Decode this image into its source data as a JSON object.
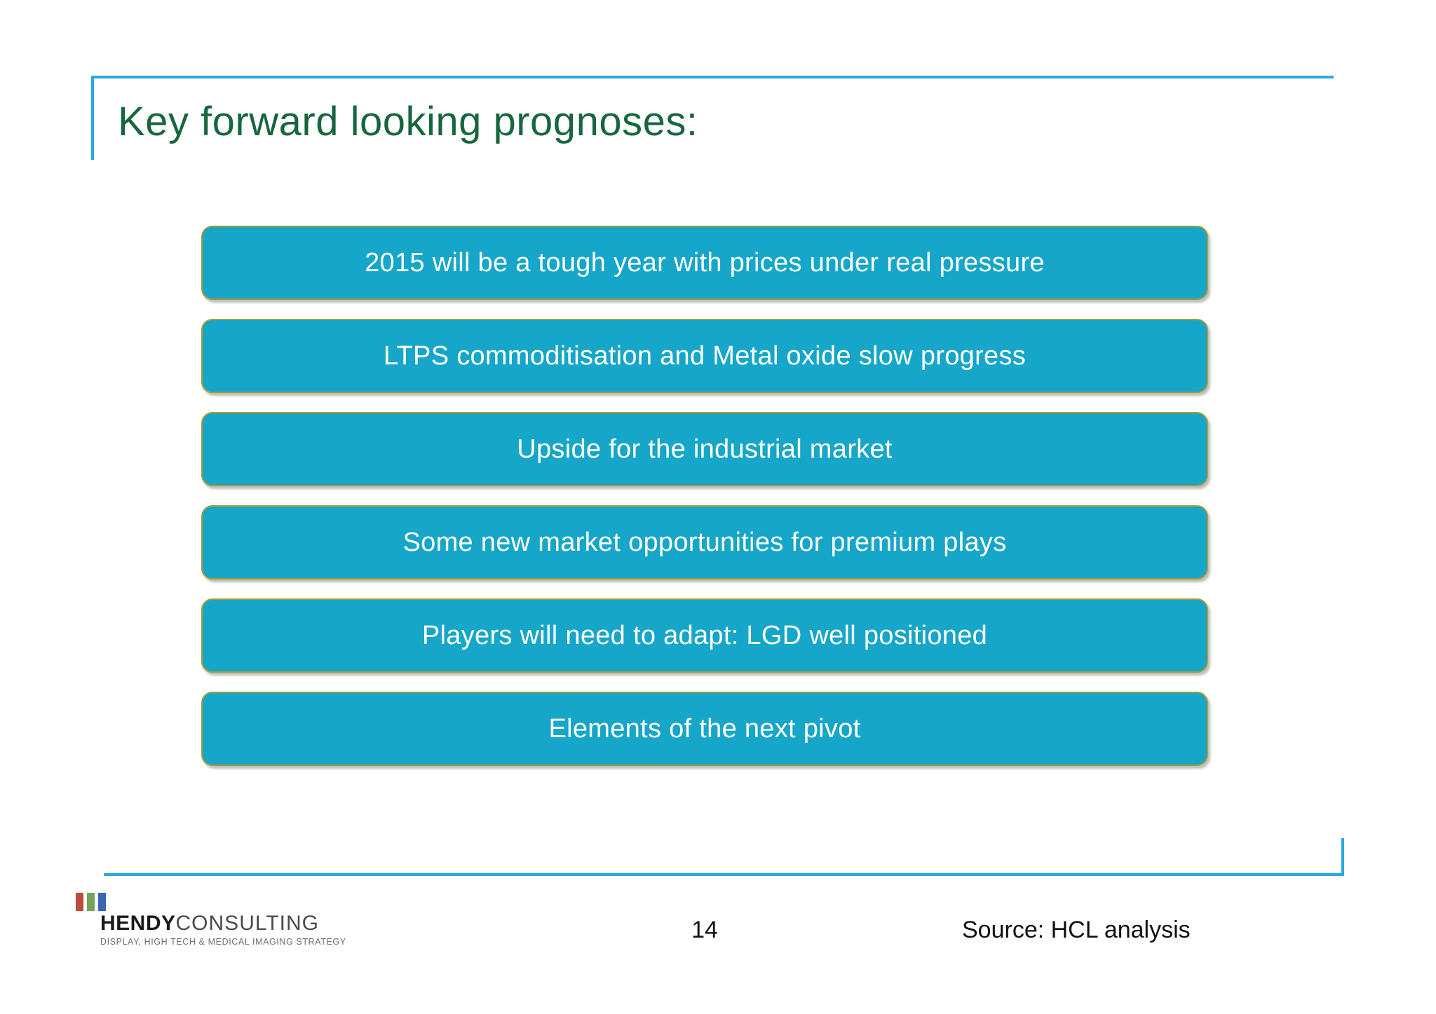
{
  "slide": {
    "title": "Key forward looking prognoses:"
  },
  "colors": {
    "frame_cyan": "#29a9e0",
    "title_green": "#17663d",
    "box_fill_teal": "#16a6c9",
    "box_border_olive": "#a89c30",
    "box_text": "#ffffff",
    "logo_bar_red": "#be4b42",
    "logo_bar_green": "#74a556",
    "logo_bar_blue": "#3a67b1"
  },
  "boxes": {
    "items": [
      {
        "label": "2015 will be a tough year with prices under real pressure"
      },
      {
        "label": "LTPS commoditisation and Metal oxide slow progress"
      },
      {
        "label": "Upside for the industrial market"
      },
      {
        "label": "Some new market opportunities for premium plays"
      },
      {
        "label": "Players will need to adapt: LGD well positioned"
      },
      {
        "label": "Elements of the next pivot"
      }
    ]
  },
  "footer": {
    "logo": {
      "brand_bold": "HENDY",
      "brand_light": "CONSULTING",
      "tagline": "DISPLAY, HIGH TECH & MEDICAL IMAGING STRATEGY"
    },
    "page_number": "14",
    "source": "Source: HCL analysis"
  }
}
